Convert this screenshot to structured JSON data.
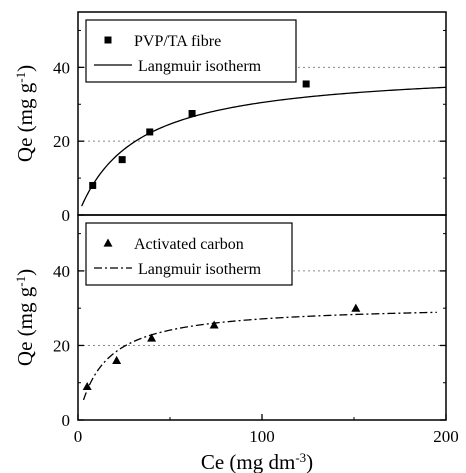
{
  "chart_data": [
    {
      "type": "scatter",
      "panel": "top",
      "ylabel": {
        "main": "Qe (mg g",
        "sup": "-1",
        "close": ")"
      },
      "xlim": [
        0,
        200
      ],
      "ylim": [
        0,
        55
      ],
      "yticks": [
        0,
        20,
        40
      ],
      "grid_y": [
        20,
        40
      ],
      "legend": "top-left",
      "series": [
        {
          "name": "PVP/TA fibre",
          "marker": "square",
          "x": [
            8,
            24,
            39,
            62,
            124
          ],
          "y": [
            8,
            15,
            22.5,
            27.5,
            35.5
          ]
        },
        {
          "name": "Langmuir isotherm",
          "style": "solid",
          "model": "langmuir",
          "qmax": 40,
          "kl": 0.032
        }
      ]
    },
    {
      "type": "scatter",
      "panel": "bottom",
      "ylabel": {
        "main": "Qe (mg g",
        "sup": "-1",
        "close": ")"
      },
      "xlabel": {
        "main": "Ce (mg dm",
        "sup": "-3",
        "close": ")"
      },
      "xlim": [
        0,
        200
      ],
      "ylim": [
        0,
        55
      ],
      "yticks": [
        0,
        20,
        40
      ],
      "xticks": [
        0,
        100,
        200
      ],
      "grid_y": [
        20,
        40
      ],
      "legend": "top-left",
      "series": [
        {
          "name": "Activated carbon",
          "marker": "triangle",
          "x": [
            5,
            21,
            40,
            74,
            151
          ],
          "y": [
            9,
            16,
            22,
            25.5,
            30
          ]
        },
        {
          "name": "Langmuir isotherm",
          "style": "dashdot",
          "model": "langmuir",
          "qmax": 31,
          "kl": 0.07
        }
      ]
    }
  ]
}
